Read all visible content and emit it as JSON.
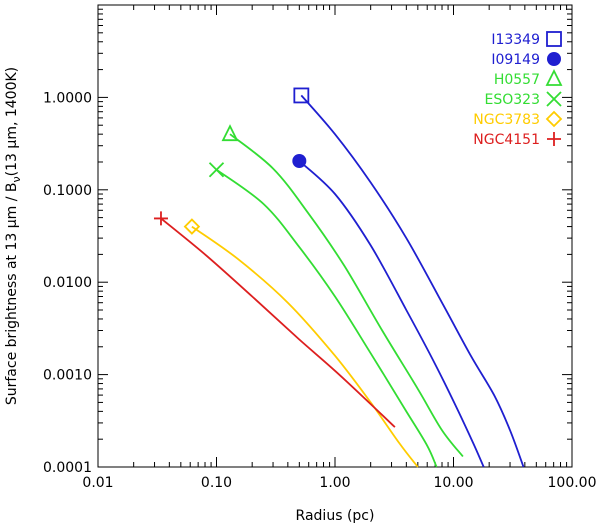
{
  "chart_data": {
    "type": "line",
    "title": "",
    "xlabel": "Radius (pc)",
    "ylabel_parts": [
      "Surface brightness at 13 ",
      "μ",
      "m / B",
      "ν",
      "(13 ",
      "μ",
      "m, 1400K)"
    ],
    "x_scale": "log",
    "y_scale": "log",
    "xlim": [
      0.01,
      100
    ],
    "ylim": [
      0.0001,
      10
    ],
    "x_ticks": [
      0.01,
      0.1,
      1,
      10,
      100
    ],
    "x_tick_labels": [
      "0.01",
      "0.10",
      "1.00",
      "10.00",
      "100.00"
    ],
    "y_ticks": [
      0.0001,
      0.001,
      0.01,
      0.1,
      1
    ],
    "y_tick_labels": [
      "0.0001",
      "0.0010",
      "0.0100",
      "0.1000",
      "1.0000"
    ],
    "legend_position": "top-right",
    "series": [
      {
        "name": "I13349",
        "color": "#1f1fd0",
        "marker": "square-open",
        "marker_point": [
          0.52,
          1.05
        ],
        "points": [
          [
            0.52,
            1.05
          ],
          [
            1.0,
            0.4
          ],
          [
            2.0,
            0.12
          ],
          [
            4.0,
            0.03
          ],
          [
            8.0,
            0.006
          ],
          [
            14.0,
            0.0016
          ],
          [
            22.0,
            0.0006
          ],
          [
            30.0,
            0.00025
          ],
          [
            39.0,
            0.0001
          ]
        ]
      },
      {
        "name": "I09149",
        "color": "#1f1fd0",
        "marker": "circle-filled",
        "marker_point": [
          0.5,
          0.205
        ],
        "points": [
          [
            0.5,
            0.205
          ],
          [
            1.0,
            0.09
          ],
          [
            2.0,
            0.025
          ],
          [
            4.0,
            0.005
          ],
          [
            7.0,
            0.0013
          ],
          [
            11.0,
            0.0004
          ],
          [
            15.0,
            0.00017
          ],
          [
            18.0,
            0.0001
          ]
        ]
      },
      {
        "name": "H0557",
        "color": "#33dd33",
        "marker": "triangle-open",
        "marker_point": [
          0.13,
          0.4
        ],
        "points": [
          [
            0.13,
            0.4
          ],
          [
            0.3,
            0.17
          ],
          [
            0.6,
            0.055
          ],
          [
            1.2,
            0.015
          ],
          [
            2.5,
            0.003
          ],
          [
            5.0,
            0.0007
          ],
          [
            8.0,
            0.00025
          ],
          [
            12.0,
            0.00013
          ]
        ]
      },
      {
        "name": "ESO323",
        "color": "#33dd33",
        "marker": "x",
        "marker_point": [
          0.1,
          0.165
        ],
        "points": [
          [
            0.1,
            0.165
          ],
          [
            0.25,
            0.07
          ],
          [
            0.5,
            0.024
          ],
          [
            1.0,
            0.007
          ],
          [
            2.0,
            0.0017
          ],
          [
            4.0,
            0.0004
          ],
          [
            6.0,
            0.00017
          ],
          [
            7.2,
            0.0001
          ]
        ]
      },
      {
        "name": "NGC3783",
        "color": "#ffcc00",
        "marker": "diamond-open",
        "marker_point": [
          0.062,
          0.04
        ],
        "points": [
          [
            0.062,
            0.04
          ],
          [
            0.15,
            0.018
          ],
          [
            0.4,
            0.006
          ],
          [
            1.0,
            0.0016
          ],
          [
            2.0,
            0.0005
          ],
          [
            3.5,
            0.00018
          ],
          [
            5.0,
            0.0001
          ]
        ]
      },
      {
        "name": "NGC4151",
        "color": "#dd1f1f",
        "marker": "plus",
        "marker_point": [
          0.034,
          0.049
        ],
        "points": [
          [
            0.034,
            0.049
          ],
          [
            0.08,
            0.02
          ],
          [
            0.2,
            0.007
          ],
          [
            0.5,
            0.0024
          ],
          [
            1.0,
            0.0011
          ],
          [
            2.0,
            0.00048
          ],
          [
            3.2,
            0.00027
          ]
        ]
      }
    ]
  }
}
